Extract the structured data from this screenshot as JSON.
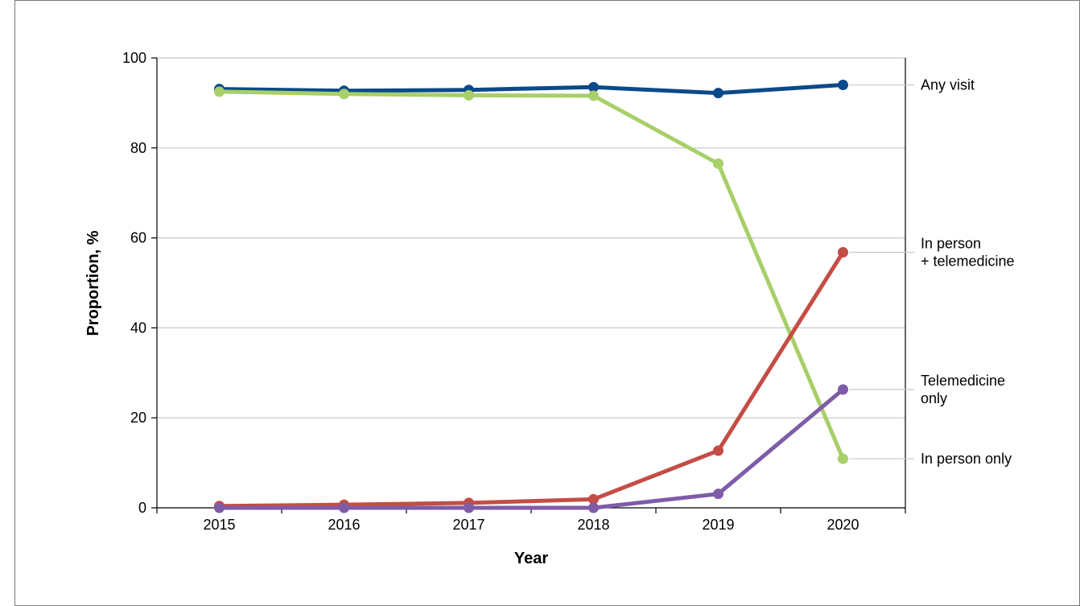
{
  "chart_data": {
    "type": "line",
    "title": "",
    "xlabel": "Year",
    "ylabel": "Proportion, %",
    "x": [
      "2015",
      "2016",
      "2017",
      "2018",
      "2019",
      "2020"
    ],
    "ylim": [
      0,
      100
    ],
    "yticks": [
      0,
      20,
      40,
      60,
      80,
      100
    ],
    "grid": "horizontal",
    "legend": "direct labels at right end of lines",
    "series": [
      {
        "name": "Any visit",
        "label_lines": [
          "Any visit"
        ],
        "color": "#0a4a8a",
        "values": [
          93.1,
          92.7,
          92.9,
          93.5,
          92.2,
          94.0
        ]
      },
      {
        "name": "In person only",
        "label_lines": [
          "In person only"
        ],
        "color": "#a8cf68",
        "values": [
          92.5,
          92.0,
          91.7,
          91.6,
          76.5,
          10.9
        ]
      },
      {
        "name": "In person + telemedicine",
        "label_lines": [
          "In person",
          "+ telemedicine"
        ],
        "color": "#c44d45",
        "values": [
          0.4,
          0.7,
          1.1,
          1.9,
          12.7,
          56.8
        ]
      },
      {
        "name": "Telemedicine only",
        "label_lines": [
          "Telemedicine",
          "only"
        ],
        "color": "#7e5ca8",
        "values": [
          0.0,
          0.0,
          0.0,
          0.0,
          3.1,
          26.3
        ]
      }
    ]
  }
}
